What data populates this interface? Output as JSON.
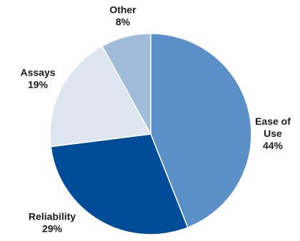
{
  "chart_data": {
    "type": "pie",
    "start_angle_deg": 0,
    "direction": "clockwise",
    "legend": "none",
    "slices": [
      {
        "label_lines": [
          "Ease of",
          "Use"
        ],
        "label": "Ease of Use",
        "value": 44,
        "value_text": "44%",
        "color": "#5b8fc7"
      },
      {
        "label_lines": [
          "Reliability"
        ],
        "label": "Reliability",
        "value": 29,
        "value_text": "29%",
        "color": "#004c99"
      },
      {
        "label_lines": [
          "Assays"
        ],
        "label": "Assays",
        "value": 19,
        "value_text": "19%",
        "color": "#dde5ee"
      },
      {
        "label_lines": [
          "Other"
        ],
        "label": "Other",
        "value": 8,
        "value_text": "8%",
        "color": "#a0bcd9"
      }
    ]
  }
}
